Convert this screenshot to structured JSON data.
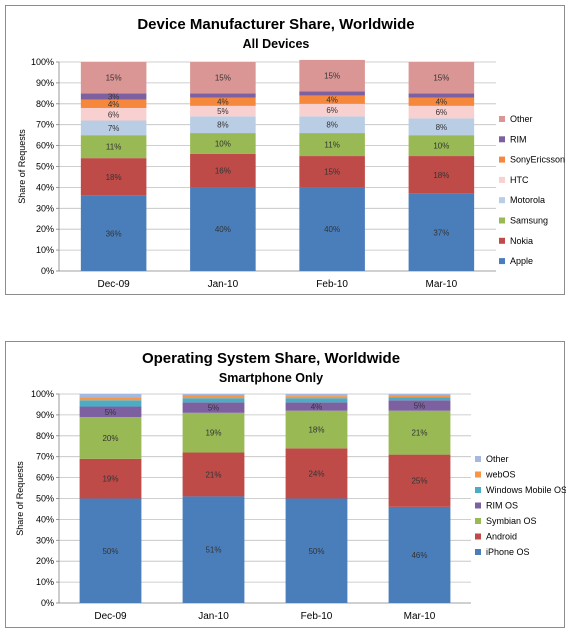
{
  "chart_data": [
    {
      "type": "bar",
      "stacked": true,
      "title": "Device Manufacturer Share, Worldwide",
      "subtitle": "All Devices",
      "ylabel": "Share of Requests",
      "ylim": [
        0,
        100
      ],
      "yticks": [
        "0%",
        "10%",
        "20%",
        "30%",
        "40%",
        "50%",
        "60%",
        "70%",
        "80%",
        "90%",
        "100%"
      ],
      "categories": [
        "Dec-09",
        "Jan-10",
        "Feb-10",
        "Mar-10"
      ],
      "grid": true,
      "legend_position": "right",
      "series": [
        {
          "name": "Apple",
          "color": "#4a7ebb",
          "values": [
            36,
            40,
            40,
            37
          ],
          "labels": [
            "36%",
            "40%",
            "40%",
            "37%"
          ]
        },
        {
          "name": "Nokia",
          "color": "#be4b48",
          "values": [
            18,
            16,
            15,
            18
          ],
          "labels": [
            "18%",
            "16%",
            "15%",
            "18%"
          ]
        },
        {
          "name": "Samsung",
          "color": "#98b954",
          "values": [
            11,
            10,
            11,
            10
          ],
          "labels": [
            "11%",
            "10%",
            "11%",
            "10%"
          ]
        },
        {
          "name": "Motorola",
          "color": "#b9cde5",
          "values": [
            7,
            8,
            8,
            8
          ],
          "labels": [
            "7%",
            "8%",
            "8%",
            "8%"
          ]
        },
        {
          "name": "HTC",
          "color": "#f9d0d0",
          "values": [
            6,
            5,
            6,
            6
          ],
          "labels": [
            "6%",
            "5%",
            "6%",
            "6%"
          ]
        },
        {
          "name": "SonyEricsson",
          "color": "#f5883d",
          "values": [
            4,
            4,
            4,
            4
          ],
          "labels": [
            "4%",
            "4%",
            "4%",
            "4%"
          ]
        },
        {
          "name": "RIM",
          "color": "#7d60a0",
          "values": [
            3,
            2,
            2,
            2
          ],
          "labels": [
            "3%",
            "",
            "",
            ""
          ]
        },
        {
          "name": "Other",
          "color": "#d99695",
          "values": [
            15,
            15,
            15,
            15
          ],
          "labels": [
            "15%",
            "15%",
            "15%",
            "15%"
          ]
        }
      ]
    },
    {
      "type": "bar",
      "stacked": true,
      "title": "Operating System Share, Worldwide",
      "subtitle": "Smartphone Only",
      "ylabel": "Share of Requests",
      "ylim": [
        0,
        100
      ],
      "yticks": [
        "0%",
        "10%",
        "20%",
        "30%",
        "40%",
        "50%",
        "60%",
        "70%",
        "80%",
        "90%",
        "100%"
      ],
      "categories": [
        "Dec-09",
        "Jan-10",
        "Feb-10",
        "Mar-10"
      ],
      "grid": true,
      "legend_position": "right",
      "series": [
        {
          "name": "iPhone OS",
          "color": "#4a7ebb",
          "values": [
            50,
            51,
            50,
            46
          ],
          "labels": [
            "50%",
            "51%",
            "50%",
            "46%"
          ]
        },
        {
          "name": "Android",
          "color": "#be4b48",
          "values": [
            19,
            21,
            24,
            25
          ],
          "labels": [
            "19%",
            "21%",
            "24%",
            "25%"
          ]
        },
        {
          "name": "Symbian OS",
          "color": "#98b954",
          "values": [
            20,
            19,
            18,
            21
          ],
          "labels": [
            "20%",
            "19%",
            "18%",
            "21%"
          ]
        },
        {
          "name": "RIM OS",
          "color": "#7d60a0",
          "values": [
            5,
            5,
            4,
            5
          ],
          "labels": [
            "5%",
            "5%",
            "4%",
            "5%"
          ]
        },
        {
          "name": "Windows Mobile OS",
          "color": "#4bacc6",
          "values": [
            3,
            2,
            2,
            1.5
          ],
          "labels": [
            "",
            "",
            "",
            ""
          ]
        },
        {
          "name": "webOS",
          "color": "#f79646",
          "values": [
            1.5,
            1.5,
            1,
            1
          ],
          "labels": [
            "",
            "",
            "",
            ""
          ]
        },
        {
          "name": "Other",
          "color": "#a5b8e0",
          "values": [
            1.5,
            0.5,
            1,
            0.5
          ],
          "labels": [
            "",
            "",
            "",
            ""
          ]
        }
      ]
    }
  ]
}
